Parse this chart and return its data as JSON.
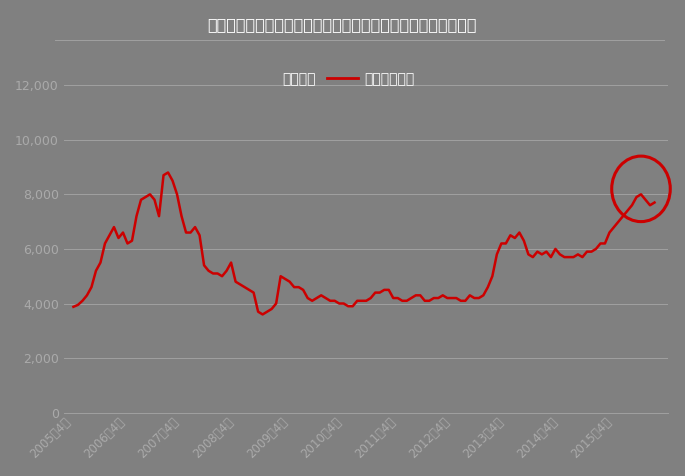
{
  "title": "図表１：日東電工と信越化学工業の株価渏移（月末株価、円）",
  "legend_nitto": "日東電工",
  "legend_shinetsu": "信越化学工業",
  "bg_color": "#808080",
  "line_color": "#cc0000",
  "title_color": "#ffffff",
  "tick_color": "#aaaaaa",
  "grid_color": "#a0a0a0",
  "ylim": [
    0,
    13000
  ],
  "yticks": [
    0,
    2000,
    4000,
    6000,
    8000,
    10000,
    12000
  ],
  "xtick_labels": [
    "2005年4月",
    "2006年4月",
    "2007年4月",
    "2008年4月",
    "2009年4月",
    "2010年4月",
    "2011年4月",
    "2012年4月",
    "2013年4月",
    "2014年4月",
    "2015年4月"
  ],
  "shinetsu_prices": [
    3880,
    3950,
    4100,
    4300,
    4600,
    5200,
    5500,
    6200,
    6500,
    6800,
    6400,
    6600,
    6200,
    6300,
    7200,
    7800,
    7900,
    8000,
    7800,
    7200,
    8700,
    8800,
    8500,
    8000,
    7200,
    6600,
    6600,
    6800,
    6500,
    5400,
    5200,
    5100,
    5100,
    5000,
    5200,
    5500,
    4800,
    4700,
    4600,
    4500,
    4400,
    3700,
    3600,
    3700,
    3800,
    4000,
    5000,
    4900,
    4800,
    4600,
    4600,
    4500,
    4200,
    4100,
    4200,
    4300,
    4200,
    4100,
    4100,
    4000,
    4000,
    3900,
    3900,
    4100,
    4100,
    4100,
    4200,
    4400,
    4400,
    4500,
    4500,
    4200,
    4200,
    4100,
    4100,
    4200,
    4300,
    4300,
    4100,
    4100,
    4200,
    4200,
    4300,
    4200,
    4200,
    4200,
    4100,
    4100,
    4300,
    4200,
    4200,
    4300,
    4600,
    5000,
    5800,
    6200,
    6200,
    6500,
    6400,
    6600,
    6300,
    5800,
    5700,
    5900,
    5800,
    5900,
    5700,
    6000,
    5800,
    5700,
    5700,
    5700,
    5800,
    5700,
    5900,
    5900,
    6000,
    6200,
    6200,
    6600,
    6800,
    7000,
    7200,
    7400,
    7600,
    7900,
    8000,
    7800,
    7600,
    7700
  ],
  "figsize": [
    6.85,
    4.76
  ],
  "dpi": 100
}
